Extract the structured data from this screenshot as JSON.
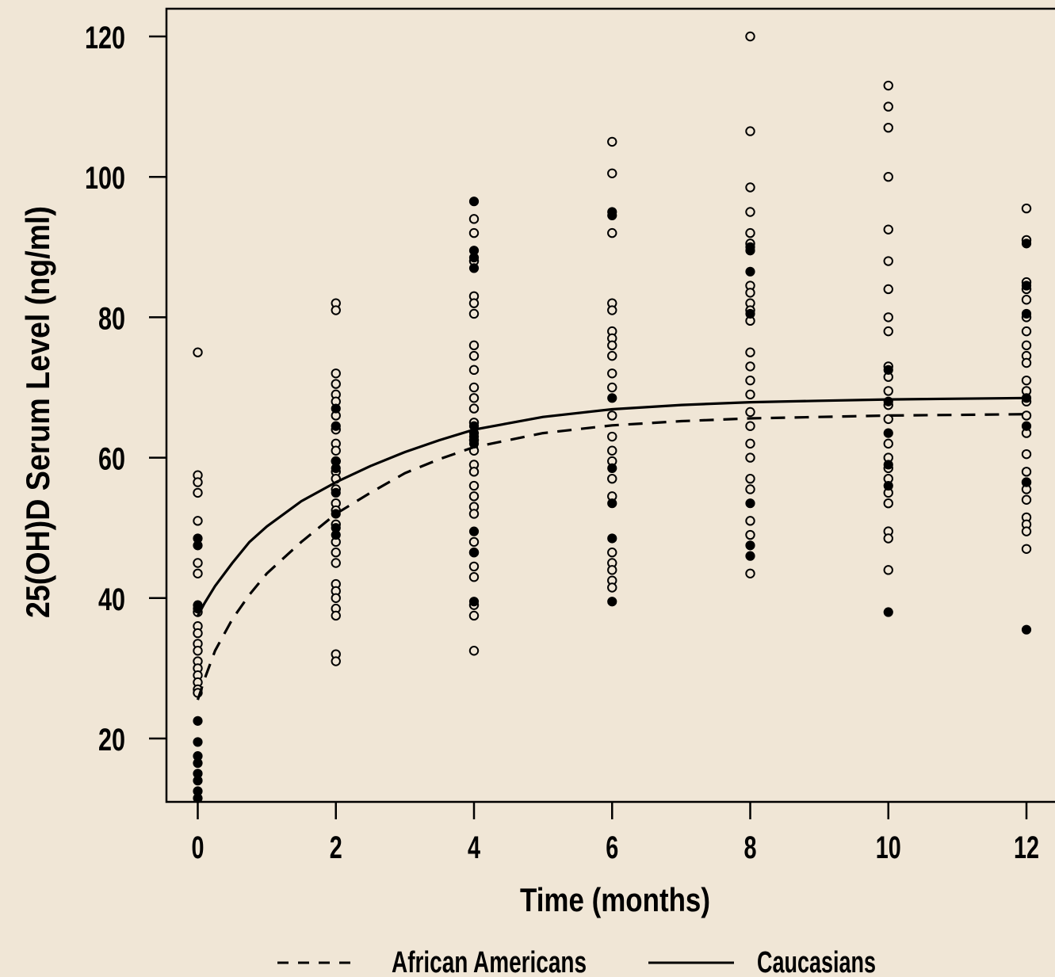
{
  "colors": {
    "background": "#f0e6d6",
    "ink": "#000000",
    "open_marker_fill": "#f0e6d6"
  },
  "chart_data": {
    "type": "scatter",
    "title": "",
    "xlabel": "Time (months)",
    "ylabel": "25(OH)D Serum Level (ng/ml)",
    "xlim": [
      -0.45,
      12.4
    ],
    "ylim": [
      11,
      124
    ],
    "x_ticks": [
      0,
      2,
      4,
      6,
      8,
      10,
      12
    ],
    "x_tick_labels": [
      "0",
      "2",
      "4",
      "6",
      "8",
      "10",
      "12"
    ],
    "y_ticks": [
      20,
      40,
      60,
      80,
      100,
      120
    ],
    "y_tick_labels": [
      "20",
      "40",
      "60",
      "80",
      "100",
      "120"
    ],
    "grid": false,
    "legend_position": "bottom",
    "series": [
      {
        "name": "African Americans",
        "line_style": "dashed",
        "curve_x": [
          0,
          0.1,
          0.25,
          0.5,
          0.75,
          1,
          1.5,
          2,
          2.5,
          3,
          3.5,
          4,
          5,
          6,
          7,
          8,
          9,
          10,
          11,
          12
        ],
        "curve_y": [
          25.5,
          28.5,
          32.5,
          37.0,
          40.5,
          43.5,
          48.0,
          52.0,
          55.0,
          57.8,
          59.8,
          61.5,
          63.5,
          64.6,
          65.2,
          65.6,
          65.8,
          66.0,
          66.1,
          66.2
        ]
      },
      {
        "name": "Caucasians",
        "line_style": "solid",
        "curve_x": [
          0,
          0.1,
          0.25,
          0.5,
          0.75,
          1,
          1.5,
          2,
          2.5,
          3,
          3.5,
          4,
          5,
          6,
          7,
          8,
          9,
          10,
          11,
          12
        ],
        "curve_y": [
          37.5,
          39.3,
          41.7,
          45.0,
          48.0,
          50.2,
          53.8,
          56.5,
          58.8,
          60.8,
          62.5,
          64.0,
          65.8,
          66.9,
          67.5,
          67.9,
          68.1,
          68.3,
          68.4,
          68.5
        ]
      }
    ],
    "points": {
      "open": [
        {
          "x": 0,
          "y": [
            75,
            57.5,
            56.5,
            55,
            51,
            45,
            43.5,
            38,
            36,
            35,
            33.5,
            32.5,
            31,
            30,
            29,
            28,
            27,
            26.5
          ]
        },
        {
          "x": 2,
          "y": [
            82,
            81,
            72,
            70.5,
            69,
            68,
            66,
            64,
            62,
            61,
            59.5,
            58,
            57,
            55.5,
            53.5,
            52.5,
            50.5,
            48,
            46.5,
            45,
            42,
            41,
            40,
            38.5,
            37.5,
            32,
            31
          ]
        },
        {
          "x": 4,
          "y": [
            94,
            92,
            88,
            83,
            82,
            80.5,
            76,
            74.5,
            72.5,
            70,
            68.5,
            67,
            65,
            62.5,
            61,
            59,
            58,
            56,
            54.5,
            53,
            52,
            48,
            46.5,
            44.5,
            43,
            39,
            37.5,
            32.5
          ]
        },
        {
          "x": 6,
          "y": [
            105,
            100.5,
            92,
            82,
            81,
            78,
            77,
            76,
            74.5,
            72,
            70,
            66,
            63,
            61,
            59.5,
            57,
            54.5,
            46.5,
            45,
            44,
            42.5,
            41.5
          ]
        },
        {
          "x": 8,
          "y": [
            120,
            106.5,
            98.5,
            95,
            92,
            90.5,
            84.5,
            83.5,
            82,
            81,
            79.5,
            75,
            73,
            71,
            69,
            66.5,
            64.5,
            62,
            60,
            57,
            55.5,
            51,
            49,
            43.5
          ]
        },
        {
          "x": 10,
          "y": [
            113,
            110,
            107,
            100,
            92.5,
            88,
            84,
            80,
            78,
            73,
            71.5,
            69.5,
            67.5,
            65.5,
            62,
            60,
            58.5,
            57,
            55,
            53.5,
            49.5,
            48.5,
            44
          ]
        },
        {
          "x": 12,
          "y": [
            95.5,
            91,
            85,
            84,
            82.5,
            80,
            78,
            76,
            74.5,
            73.5,
            71,
            69.5,
            68,
            66,
            63.5,
            60.5,
            58,
            56.5,
            55.5,
            54,
            51.5,
            50.5,
            49.5,
            47
          ]
        }
      ],
      "filled": [
        {
          "x": 0,
          "y": [
            48.5,
            47.5,
            39,
            38.5,
            22.5,
            19.5,
            17.5,
            16.5,
            15,
            14,
            12.5,
            11.5
          ]
        },
        {
          "x": 2,
          "y": [
            67,
            64.5,
            59.5,
            58.5,
            55,
            52,
            50,
            49
          ]
        },
        {
          "x": 4,
          "y": [
            96.5,
            89.5,
            88.5,
            87,
            64.5,
            63.5,
            63,
            62,
            49.5,
            46.5,
            39.5
          ]
        },
        {
          "x": 6,
          "y": [
            95,
            94.5,
            68.5,
            58.5,
            53.5,
            48.5,
            39.5
          ]
        },
        {
          "x": 8,
          "y": [
            90,
            89.5,
            86.5,
            80.5,
            53.5,
            47.5,
            46
          ]
        },
        {
          "x": 10,
          "y": [
            72.5,
            68,
            63.5,
            59,
            56,
            38
          ]
        },
        {
          "x": 12,
          "y": [
            90.5,
            84.5,
            80.5,
            68.5,
            64.5,
            56.5,
            35.5
          ]
        }
      ]
    }
  }
}
